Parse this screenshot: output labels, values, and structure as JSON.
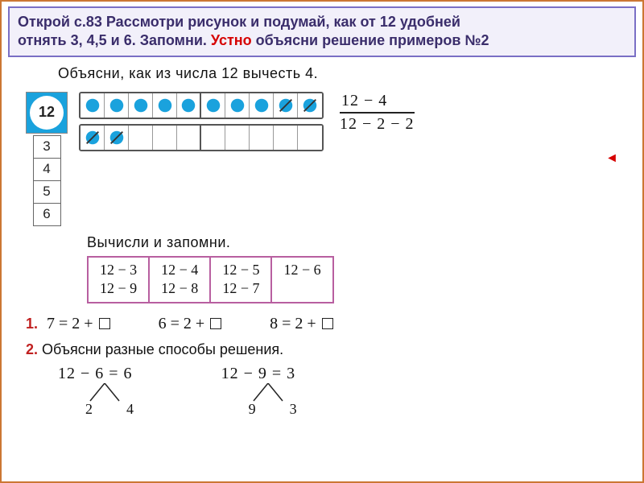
{
  "instruction": {
    "line1": "Открой с.83  Рассмотри рисунок и подумай, как от 12 удобней",
    "line2a": "отнять 3, 4,5 и 6. Запомни. ",
    "line2_red": "Устно",
    "line2b": " объясни решение примеров №2",
    "box_border": "#7a6fc5",
    "box_bg": "#f2f0fa",
    "text_color": "#3a2d6b",
    "red_color": "#d60000"
  },
  "page": {
    "title": "Объясни, как из числа 12 вычесть 4.",
    "badge_value": "12",
    "badge_bg": "#1aa2dd",
    "left_numbers": [
      "3",
      "4",
      "5",
      "6"
    ],
    "dot_fill": "#1aa2dd",
    "dot_crossed": "#1aa2dd",
    "strip1_dots": 10,
    "strip1_crossed_from": 8,
    "strip2_cells": 10,
    "strip2_dots": 2,
    "strip2_crossed": true,
    "frac_top": "12 − 4",
    "frac_bot": "12 − 2 − 2",
    "sub_title": "Вычисли и запомни.",
    "memo_border": "#b85fa0",
    "memo": [
      [
        "12 − 3",
        "12 − 9"
      ],
      [
        "12 − 4",
        "12 − 8"
      ],
      [
        "12 − 5",
        "12 − 7"
      ],
      [
        "12 − 6"
      ]
    ],
    "p1": {
      "idx": "1.",
      "a": "7 = 2 + ",
      "b": "6 = 2 + ",
      "c": "8 = 2 + "
    },
    "p2": {
      "idx": "2.",
      "title": "Объясни разные способы решения.",
      "eq1": "12 − 6 = 6",
      "eq1_split": [
        "2",
        "4"
      ],
      "eq2": "12 − 9 = 3",
      "eq2_split": [
        "9",
        "3"
      ]
    }
  }
}
